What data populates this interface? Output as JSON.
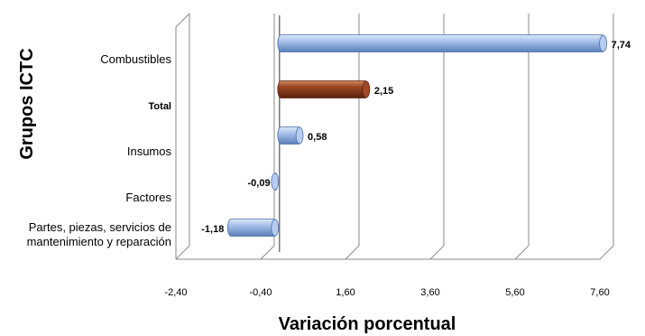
{
  "chart_data": {
    "type": "bar",
    "orientation": "horizontal",
    "xlabel": "Variación porcentual",
    "ylabel": "Grupos ICTC",
    "xlim": [
      -2.4,
      7.6
    ],
    "xticks": [
      -2.4,
      -0.4,
      1.6,
      3.6,
      5.6,
      7.6
    ],
    "xtick_labels": [
      "-2,40",
      "-0,40",
      "1,60",
      "3,60",
      "5,60",
      "7,60"
    ],
    "categories": [
      "Combustibles",
      "Total",
      "Insumos",
      "Factores",
      "Partes, piezas, servicios de mantenimiento y reparación"
    ],
    "category_lines": [
      [
        "Combustibles"
      ],
      [
        "Total"
      ],
      [
        "Insumos"
      ],
      [
        "Factores"
      ],
      [
        "Partes, piezas, servicios de",
        "mantenimiento y reparación"
      ]
    ],
    "values": [
      7.74,
      2.15,
      0.58,
      -0.09,
      -1.18
    ],
    "value_labels": [
      "7,74",
      "2,15",
      "0,58",
      "-0,09",
      "-1,18"
    ],
    "highlight_category": "Total",
    "colors": {
      "default_bar": "#7fa3d8",
      "default_bar_dark": "#4a6fa8",
      "highlight_bar": "#8b3a18",
      "highlight_bar_dark": "#5a220c",
      "gridline": "#8a8a8a"
    },
    "grid": true
  }
}
